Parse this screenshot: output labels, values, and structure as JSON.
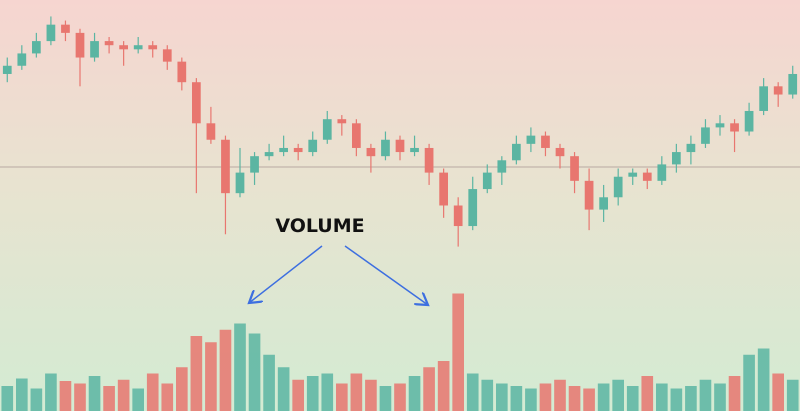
{
  "chart_data": {
    "type": "candlestick",
    "annotation": "VOLUME",
    "up_color": "#5bb5a2",
    "down_color": "#e8766f",
    "ylim": [
      0,
      100
    ],
    "volume_lim": [
      0,
      100
    ],
    "open": [
      82,
      84,
      87,
      90,
      94,
      92,
      86,
      90,
      89,
      88,
      89,
      88,
      85,
      80,
      70,
      66,
      53,
      58,
      62,
      63,
      64,
      63,
      66,
      71,
      70,
      64,
      62,
      66,
      63,
      64,
      58,
      50,
      45,
      54,
      58,
      61,
      65,
      67,
      64,
      62,
      56,
      49,
      52,
      57,
      58,
      56,
      60,
      63,
      65,
      69,
      70,
      68,
      73,
      79,
      77
    ],
    "high": [
      86,
      89,
      92,
      96,
      95,
      93,
      92,
      91,
      90,
      91,
      90,
      89,
      86,
      81,
      74,
      67,
      64,
      63,
      65,
      67,
      65,
      68,
      73,
      72,
      71,
      65,
      68,
      67,
      67,
      65,
      59,
      52,
      57,
      60,
      62,
      67,
      69,
      68,
      65,
      63,
      59,
      55,
      59,
      59,
      59,
      62,
      65,
      67,
      71,
      72,
      71,
      75,
      81,
      80,
      84
    ],
    "low": [
      80,
      83,
      86,
      89,
      90,
      79,
      85,
      87,
      84,
      87,
      86,
      83,
      78,
      53,
      65,
      43,
      52,
      55,
      61,
      62,
      61,
      62,
      65,
      67,
      62,
      58,
      61,
      61,
      62,
      55,
      47,
      40,
      44,
      53,
      55,
      60,
      63,
      62,
      59,
      53,
      44,
      46,
      50,
      55,
      54,
      55,
      58,
      60,
      64,
      67,
      63,
      67,
      72,
      74,
      76
    ],
    "close": [
      84,
      87,
      90,
      94,
      92,
      86,
      90,
      89,
      88,
      89,
      88,
      85,
      80,
      70,
      66,
      53,
      58,
      62,
      63,
      64,
      63,
      66,
      71,
      70,
      64,
      62,
      66,
      63,
      64,
      58,
      50,
      45,
      54,
      58,
      61,
      65,
      67,
      64,
      62,
      56,
      49,
      52,
      57,
      58,
      56,
      60,
      63,
      65,
      69,
      70,
      68,
      73,
      79,
      77,
      82
    ],
    "volume": [
      20,
      26,
      18,
      30,
      24,
      22,
      28,
      20,
      25,
      18,
      30,
      22,
      35,
      60,
      55,
      65,
      70,
      62,
      45,
      35,
      25,
      28,
      30,
      22,
      30,
      25,
      20,
      22,
      28,
      35,
      40,
      94,
      30,
      25,
      22,
      20,
      18,
      22,
      25,
      20,
      18,
      22,
      25,
      20,
      28,
      22,
      18,
      20,
      25,
      22,
      28,
      45,
      50,
      30,
      25
    ]
  }
}
